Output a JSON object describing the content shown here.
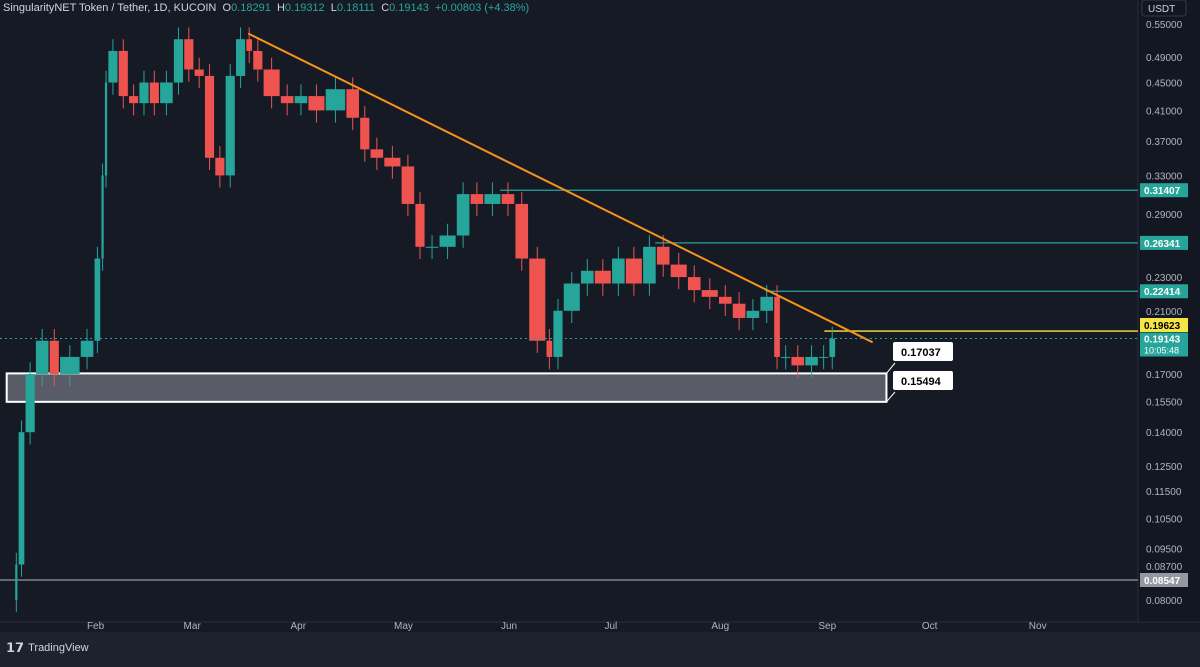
{
  "header": {
    "symbol": "SingularityNET Token / Tether, 1D, KUCOIN",
    "o_label": "O",
    "o": "0.18291",
    "h_label": "H",
    "h": "0.19312",
    "l_label": "L",
    "l": "0.18111",
    "c_label": "C",
    "c": "0.19143",
    "change": "+0.00803 (+4.38%)"
  },
  "currency": "USDT",
  "brand": "TradingView",
  "chart_data": {
    "type": "candlestick",
    "y_scale": "log",
    "ylim": [
      0.075,
      0.56
    ],
    "y_ticks": [
      "0.55000",
      "0.49000",
      "0.45000",
      "0.41000",
      "0.37000",
      "0.33000",
      "0.29000",
      "0.23000",
      "0.21000",
      "0.17000",
      "0.15500",
      "0.14000",
      "0.12500",
      "0.11500",
      "0.10500",
      "0.09500",
      "0.08700",
      "0.08000"
    ],
    "x_ticks": [
      "Feb",
      "Mar",
      "Apr",
      "May",
      "Jun",
      "Jul",
      "Aug",
      "Sep",
      "Oct",
      "Nov"
    ],
    "closes": [
      [
        "01-09",
        0.08
      ],
      [
        "01-10",
        0.09
      ],
      [
        "01-12",
        0.14
      ],
      [
        "01-15",
        0.17
      ],
      [
        "01-19",
        0.19
      ],
      [
        "01-22",
        0.17
      ],
      [
        "01-28",
        0.18
      ],
      [
        "02-01",
        0.19
      ],
      [
        "02-03",
        0.25
      ],
      [
        "02-04",
        0.33
      ],
      [
        "02-05",
        0.45
      ],
      [
        "02-08",
        0.5
      ],
      [
        "02-11",
        0.43
      ],
      [
        "02-14",
        0.42
      ],
      [
        "02-17",
        0.45
      ],
      [
        "02-20",
        0.42
      ],
      [
        "02-24",
        0.45
      ],
      [
        "02-27",
        0.52
      ],
      [
        "03-02",
        0.47
      ],
      [
        "03-05",
        0.46
      ],
      [
        "03-08",
        0.35
      ],
      [
        "03-11",
        0.33
      ],
      [
        "03-14",
        0.46
      ],
      [
        "03-17",
        0.52
      ],
      [
        "03-19",
        0.5
      ],
      [
        "03-22",
        0.47
      ],
      [
        "03-27",
        0.43
      ],
      [
        "03-31",
        0.42
      ],
      [
        "04-04",
        0.43
      ],
      [
        "04-09",
        0.41
      ],
      [
        "04-15",
        0.44
      ],
      [
        "04-19",
        0.4
      ],
      [
        "04-22",
        0.36
      ],
      [
        "04-26",
        0.35
      ],
      [
        "05-01",
        0.34
      ],
      [
        "05-05",
        0.3
      ],
      [
        "05-08",
        0.26
      ],
      [
        "05-12",
        0.26
      ],
      [
        "05-17",
        0.27
      ],
      [
        "05-21",
        0.31
      ],
      [
        "05-25",
        0.3
      ],
      [
        "05-30",
        0.31
      ],
      [
        "06-03",
        0.3
      ],
      [
        "06-07",
        0.25
      ],
      [
        "06-12",
        0.19
      ],
      [
        "06-14",
        0.18
      ],
      [
        "06-17",
        0.21
      ],
      [
        "06-22",
        0.23
      ],
      [
        "06-26",
        0.24
      ],
      [
        "07-01",
        0.23
      ],
      [
        "07-05",
        0.25
      ],
      [
        "07-10",
        0.23
      ],
      [
        "07-14",
        0.26
      ],
      [
        "07-18",
        0.245
      ],
      [
        "07-23",
        0.235
      ],
      [
        "07-27",
        0.225
      ],
      [
        "08-01",
        0.22
      ],
      [
        "08-05",
        0.215
      ],
      [
        "08-09",
        0.205
      ],
      [
        "08-13",
        0.21
      ],
      [
        "08-17",
        0.22
      ],
      [
        "08-19",
        0.18
      ],
      [
        "08-22",
        0.18
      ],
      [
        "08-26",
        0.175
      ],
      [
        "08-30",
        0.18
      ],
      [
        "09-02",
        0.18
      ],
      [
        "09-04",
        0.19143
      ]
    ],
    "trendline": [
      [
        "03-18",
        0.53
      ],
      [
        "09-15",
        0.189
      ]
    ],
    "levels": [
      {
        "value": "0.31407",
        "from": "05-30",
        "color": "#26a69a"
      },
      {
        "value": "0.26341",
        "from": "07-14",
        "color": "#26a69a"
      },
      {
        "value": "0.22414",
        "from": "08-15",
        "color": "#26a69a"
      },
      {
        "value": "0.19623",
        "from": "09-01",
        "color": "#f5e642"
      },
      {
        "value": "0.08547",
        "from": "01-01",
        "color": "#9598a1"
      }
    ],
    "zone": {
      "top": "0.17037",
      "bottom": "0.15494",
      "from": "01-07",
      "to": "09-19"
    },
    "last_price": "0.19143",
    "countdown": "10:05:48",
    "colors": {
      "up": "#26a69a",
      "down": "#ef5350",
      "trend": "#f7931a"
    }
  }
}
